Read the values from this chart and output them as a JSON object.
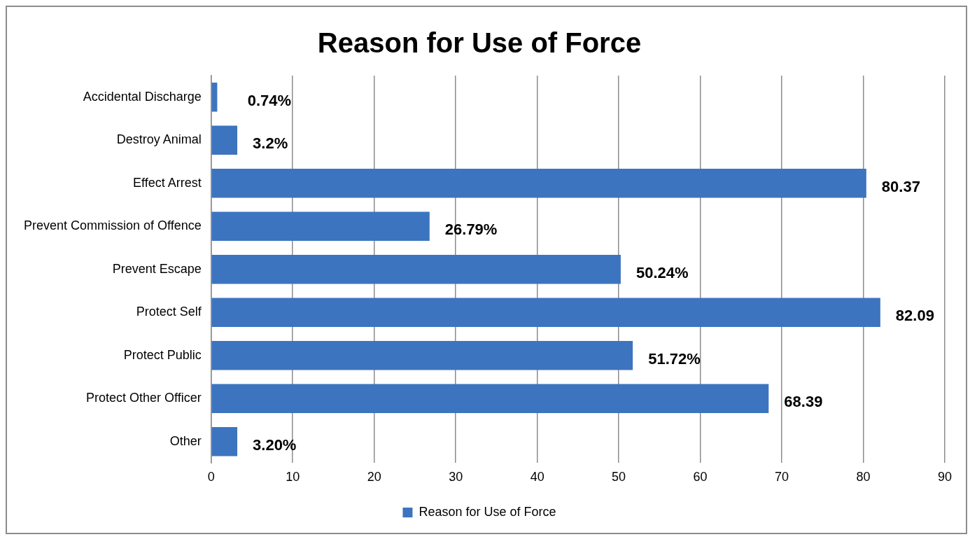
{
  "chart_data": {
    "type": "bar",
    "orientation": "horizontal",
    "title": "Reason for Use of Force",
    "categories": [
      "Accidental Discharge",
      "Destroy Animal",
      "Effect Arrest",
      "Prevent Commission of Offence",
      "Prevent Escape",
      "Protect Self",
      "Protect Public",
      "Protect Other Officer",
      "Other"
    ],
    "series": [
      {
        "name": "Reason for Use of Force",
        "color": "#3d74bf",
        "values": [
          0.74,
          3.2,
          80.37,
          26.79,
          50.24,
          82.09,
          51.72,
          68.39,
          3.2
        ],
        "value_labels": [
          "0.74%",
          "3.2%",
          "80.37",
          "26.79%",
          "50.24%",
          "82.09",
          "51.72%",
          "68.39",
          "3.20%"
        ]
      }
    ],
    "xlim": [
      0,
      90
    ],
    "xticks": [
      0,
      10,
      20,
      30,
      40,
      50,
      60,
      70,
      80,
      90
    ],
    "grid": "x",
    "legend": "bottom"
  }
}
